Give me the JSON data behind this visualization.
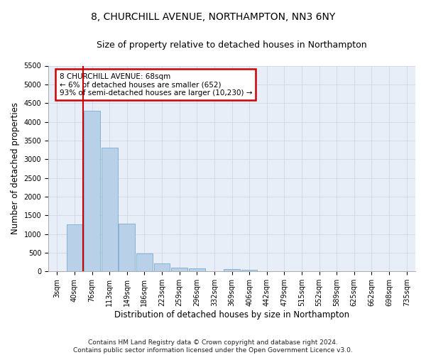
{
  "title_line1": "8, CHURCHILL AVENUE, NORTHAMPTON, NN3 6NY",
  "title_line2": "Size of property relative to detached houses in Northampton",
  "xlabel": "Distribution of detached houses by size in Northampton",
  "ylabel": "Number of detached properties",
  "footnote": "Contains HM Land Registry data © Crown copyright and database right 2024.\nContains public sector information licensed under the Open Government Licence v3.0.",
  "categories": [
    "3sqm",
    "40sqm",
    "76sqm",
    "113sqm",
    "149sqm",
    "186sqm",
    "223sqm",
    "259sqm",
    "296sqm",
    "332sqm",
    "369sqm",
    "406sqm",
    "442sqm",
    "479sqm",
    "515sqm",
    "552sqm",
    "589sqm",
    "625sqm",
    "662sqm",
    "698sqm",
    "735sqm"
  ],
  "bar_values": [
    0,
    1250,
    4300,
    3300,
    1270,
    480,
    220,
    100,
    75,
    0,
    60,
    50,
    0,
    0,
    0,
    0,
    0,
    0,
    0,
    0,
    0
  ],
  "bar_color": "#b8d0e8",
  "bar_edge_color": "#7aabcf",
  "vline_x": 1.5,
  "vline_color": "#cc0000",
  "annotation_text_line1": "8 CHURCHILL AVENUE: 68sqm",
  "annotation_text_line2": "← 6% of detached houses are smaller (652)",
  "annotation_text_line3": "93% of semi-detached houses are larger (10,230) →",
  "annotation_box_color": "#cc0000",
  "annotation_fill": "#ffffff",
  "ylim": [
    0,
    5500
  ],
  "yticks": [
    0,
    500,
    1000,
    1500,
    2000,
    2500,
    3000,
    3500,
    4000,
    4500,
    5000,
    5500
  ],
  "grid_color": "#c8d4e8",
  "background_color": "#e8eef8",
  "title_fontsize": 10,
  "subtitle_fontsize": 9,
  "tick_fontsize": 7,
  "label_fontsize": 8.5,
  "footnote_fontsize": 6.5
}
